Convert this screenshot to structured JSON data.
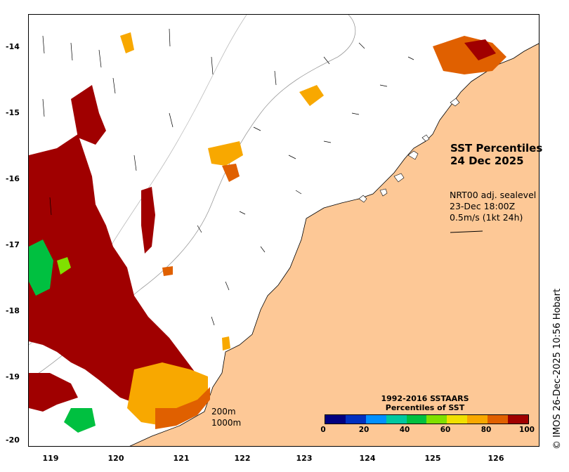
{
  "title": {
    "line1": "SST Percentiles",
    "line2": "24 Dec 2025"
  },
  "vectors": {
    "line1": "NRT00 adj. sealevel",
    "line2": "23-Dec 18:00Z",
    "line3": "0.5m/s (1kt 24h)"
  },
  "credit": "© IMOS 26-Dec-2025 10:56 Hobart",
  "isobaths": {
    "line1": "200m",
    "line2": "1000m"
  },
  "colorbar": {
    "title_line1": "1992-2016 SSTAARS",
    "title_line2": "Percentiles of SST",
    "colors": [
      "#000080",
      "#0030c0",
      "#0090ff",
      "#00c8a0",
      "#00c040",
      "#80e000",
      "#f0e000",
      "#f8a800",
      "#e06000",
      "#a00000"
    ],
    "labels": [
      "0",
      "20",
      "40",
      "60",
      "80",
      "100"
    ]
  },
  "axes": {
    "lat_ticks": [
      "-14",
      "-15",
      "-16",
      "-17",
      "-18",
      "-19",
      "-20"
    ],
    "lon_ticks": [
      "119",
      "120",
      "121",
      "122",
      "123",
      "124",
      "125",
      "126"
    ]
  },
  "colors": {
    "land": "#fdc896",
    "ocean": "#ffffff"
  }
}
